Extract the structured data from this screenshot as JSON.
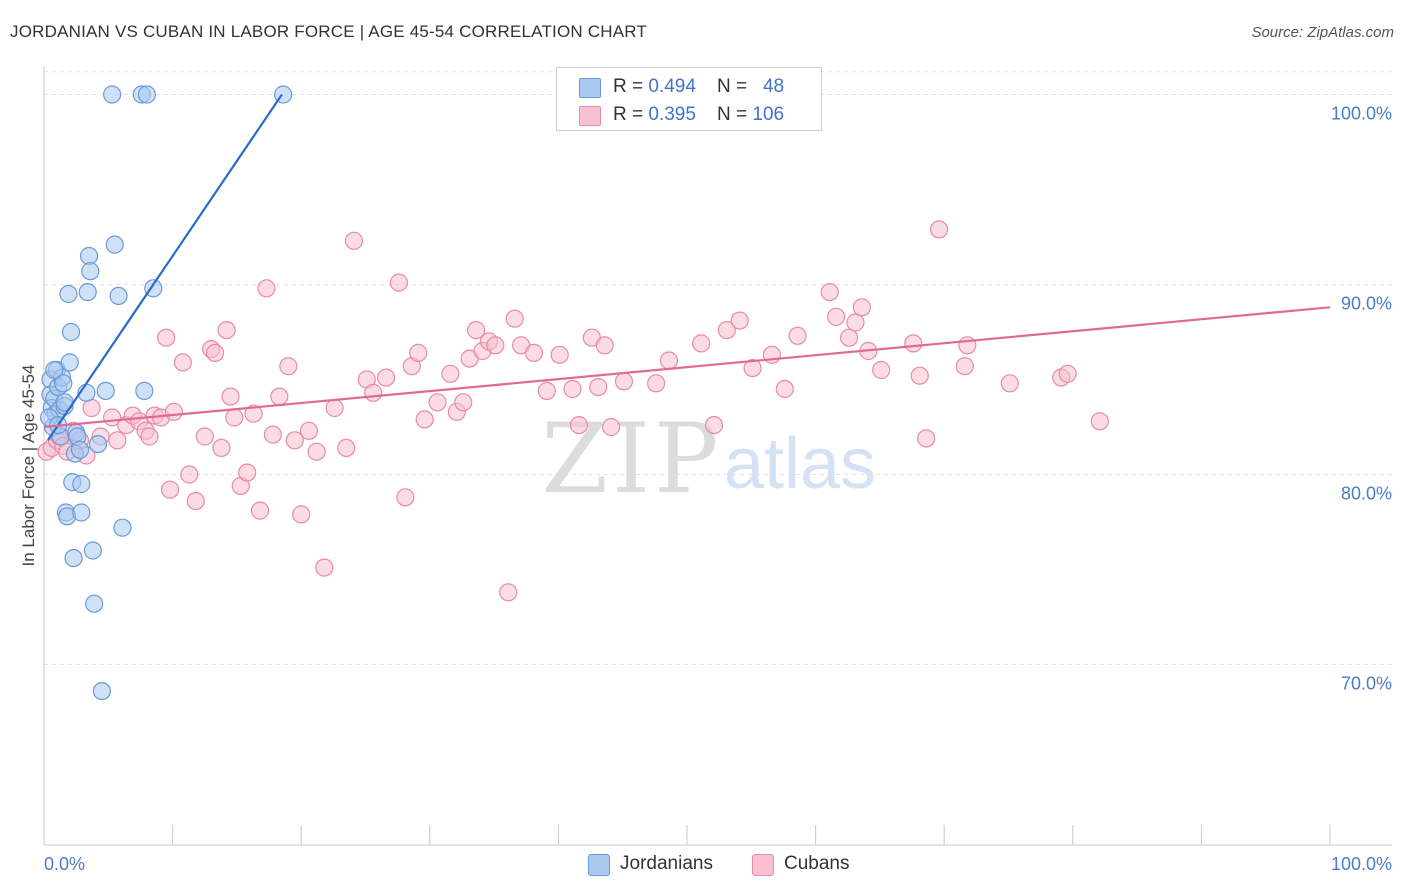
{
  "header": {
    "title": "JORDANIAN VS CUBAN IN LABOR FORCE | AGE 45-54 CORRELATION CHART",
    "source": "Source: ZipAtlas.com"
  },
  "watermark": {
    "zip": "ZIP",
    "atlas": "atlas"
  },
  "stats_legend": [
    {
      "r_label": "R = ",
      "r_value": "0.494",
      "n_label": "N = ",
      "n_value": "48",
      "color": "#a8c8f0",
      "border": "#6a9ad8"
    },
    {
      "r_label": "R = ",
      "r_value": "0.395",
      "n_label": "N = ",
      "n_value": "106",
      "color": "#f8c0d0",
      "border": "#e88aa8"
    }
  ],
  "chart_data": {
    "type": "scatter",
    "title": "JORDANIAN VS CUBAN IN LABOR FORCE | AGE 45-54 CORRELATION CHART",
    "xlabel": "",
    "ylabel": "In Labor Force | Age 45-54",
    "xlim": [
      0,
      100
    ],
    "ylim": [
      60.5,
      101.5
    ],
    "x_tick_labels": [
      {
        "value": 0,
        "label": "0.0%"
      },
      {
        "value": 100,
        "label": "100.0%"
      }
    ],
    "y_tick_labels": [
      {
        "value": 70,
        "label": "70.0%"
      },
      {
        "value": 80,
        "label": "80.0%"
      },
      {
        "value": 90,
        "label": "90.0%"
      },
      {
        "value": 100,
        "label": "100.0%"
      }
    ],
    "grid": true,
    "series": [
      {
        "name": "Jordanians",
        "color": "#a8c8f0",
        "stroke": "#6a9ad8",
        "trend_color": "#2a6cc8",
        "trend": {
          "x": [
            0.3,
            18.5
          ],
          "y": [
            81.8,
            100.0
          ]
        },
        "points": [
          [
            0.5,
            85.0
          ],
          [
            0.5,
            84.2
          ],
          [
            0.6,
            83.5
          ],
          [
            0.7,
            82.5
          ],
          [
            0.8,
            84.0
          ],
          [
            0.9,
            83.2
          ],
          [
            1.0,
            85.5
          ],
          [
            1.1,
            84.6
          ],
          [
            1.2,
            83.4
          ],
          [
            1.3,
            82.0
          ],
          [
            1.4,
            85.1
          ],
          [
            1.5,
            84.8
          ],
          [
            1.6,
            83.6
          ],
          [
            1.7,
            78.0
          ],
          [
            1.8,
            77.8
          ],
          [
            1.9,
            89.5
          ],
          [
            2.0,
            85.9
          ],
          [
            2.1,
            87.5
          ],
          [
            2.2,
            79.6
          ],
          [
            2.3,
            75.6
          ],
          [
            2.4,
            81.1
          ],
          [
            2.5,
            82.2
          ],
          [
            2.6,
            82.0
          ],
          [
            2.8,
            81.3
          ],
          [
            2.9,
            78.0
          ],
          [
            2.9,
            79.5
          ],
          [
            3.3,
            84.3
          ],
          [
            3.4,
            89.6
          ],
          [
            3.5,
            91.5
          ],
          [
            3.6,
            90.7
          ],
          [
            3.8,
            76.0
          ],
          [
            3.9,
            73.2
          ],
          [
            4.2,
            81.6
          ],
          [
            4.5,
            68.6
          ],
          [
            4.8,
            84.4
          ],
          [
            5.3,
            100.0
          ],
          [
            5.5,
            92.1
          ],
          [
            5.8,
            89.4
          ],
          [
            6.1,
            77.2
          ],
          [
            7.6,
            100.0
          ],
          [
            7.8,
            84.4
          ],
          [
            8.0,
            100.0
          ],
          [
            8.5,
            89.8
          ],
          [
            18.6,
            100.0
          ],
          [
            0.4,
            83.0
          ],
          [
            1.1,
            82.6
          ],
          [
            1.6,
            83.8
          ],
          [
            0.8,
            85.5
          ]
        ]
      },
      {
        "name": "Cubans",
        "color": "#f8c0d0",
        "stroke": "#e88aa8",
        "trend_color": "#e06a95",
        "trend": {
          "x": [
            0,
            100
          ],
          "y": [
            82.5,
            88.8
          ]
        },
        "points": [
          [
            0.2,
            81.2
          ],
          [
            0.6,
            81.4
          ],
          [
            1.0,
            81.8
          ],
          [
            1.2,
            82.0
          ],
          [
            1.5,
            81.5
          ],
          [
            1.8,
            81.2
          ],
          [
            2.3,
            82.3
          ],
          [
            2.8,
            81.8
          ],
          [
            3.3,
            81.0
          ],
          [
            3.7,
            83.5
          ],
          [
            4.4,
            82.0
          ],
          [
            5.3,
            83.0
          ],
          [
            5.7,
            81.8
          ],
          [
            6.4,
            82.6
          ],
          [
            6.9,
            83.1
          ],
          [
            7.4,
            82.8
          ],
          [
            7.9,
            82.3
          ],
          [
            8.2,
            82.0
          ],
          [
            8.6,
            83.1
          ],
          [
            9.1,
            83.0
          ],
          [
            9.5,
            87.2
          ],
          [
            9.8,
            79.2
          ],
          [
            10.1,
            83.3
          ],
          [
            10.8,
            85.9
          ],
          [
            11.3,
            80.0
          ],
          [
            11.8,
            78.6
          ],
          [
            12.5,
            82.0
          ],
          [
            13.0,
            86.6
          ],
          [
            13.3,
            86.4
          ],
          [
            13.8,
            81.4
          ],
          [
            14.2,
            87.6
          ],
          [
            14.5,
            84.1
          ],
          [
            14.8,
            83.0
          ],
          [
            15.3,
            79.4
          ],
          [
            15.8,
            80.1
          ],
          [
            16.3,
            83.2
          ],
          [
            16.8,
            78.1
          ],
          [
            17.3,
            89.8
          ],
          [
            17.8,
            82.1
          ],
          [
            18.3,
            84.1
          ],
          [
            19.0,
            85.7
          ],
          [
            19.5,
            81.8
          ],
          [
            20.0,
            77.9
          ],
          [
            20.6,
            82.3
          ],
          [
            21.2,
            81.2
          ],
          [
            21.8,
            75.1
          ],
          [
            22.6,
            83.5
          ],
          [
            23.5,
            81.4
          ],
          [
            24.1,
            92.3
          ],
          [
            25.1,
            85.0
          ],
          [
            25.6,
            84.3
          ],
          [
            26.6,
            85.1
          ],
          [
            27.6,
            90.1
          ],
          [
            28.1,
            78.8
          ],
          [
            28.6,
            85.7
          ],
          [
            29.1,
            86.4
          ],
          [
            29.6,
            82.9
          ],
          [
            30.6,
            83.8
          ],
          [
            31.6,
            85.3
          ],
          [
            32.1,
            83.3
          ],
          [
            32.6,
            83.8
          ],
          [
            33.1,
            86.1
          ],
          [
            33.6,
            87.6
          ],
          [
            34.1,
            86.5
          ],
          [
            34.6,
            87.0
          ],
          [
            35.1,
            86.8
          ],
          [
            36.1,
            73.8
          ],
          [
            36.6,
            88.2
          ],
          [
            37.1,
            86.8
          ],
          [
            38.1,
            86.4
          ],
          [
            39.1,
            84.4
          ],
          [
            40.1,
            86.3
          ],
          [
            41.1,
            84.5
          ],
          [
            41.6,
            82.6
          ],
          [
            42.6,
            87.2
          ],
          [
            43.1,
            84.6
          ],
          [
            43.6,
            86.8
          ],
          [
            44.1,
            82.5
          ],
          [
            45.1,
            84.9
          ],
          [
            47.6,
            84.8
          ],
          [
            48.6,
            86.0
          ],
          [
            51.1,
            86.9
          ],
          [
            52.1,
            82.6
          ],
          [
            53.1,
            87.6
          ],
          [
            54.1,
            88.1
          ],
          [
            55.1,
            85.6
          ],
          [
            56.6,
            86.3
          ],
          [
            57.6,
            84.5
          ],
          [
            58.6,
            87.3
          ],
          [
            61.1,
            89.6
          ],
          [
            61.6,
            88.3
          ],
          [
            62.6,
            87.2
          ],
          [
            63.1,
            88.0
          ],
          [
            63.6,
            88.8
          ],
          [
            64.1,
            86.5
          ],
          [
            65.1,
            85.5
          ],
          [
            67.6,
            86.9
          ],
          [
            68.1,
            85.2
          ],
          [
            68.6,
            81.9
          ],
          [
            69.6,
            92.9
          ],
          [
            71.6,
            85.7
          ],
          [
            71.8,
            86.8
          ],
          [
            75.1,
            84.8
          ],
          [
            79.1,
            85.1
          ],
          [
            79.6,
            85.3
          ],
          [
            82.1,
            82.8
          ]
        ]
      }
    ]
  },
  "bottom_legend": [
    {
      "label": "Jordanians",
      "color": "#a8c8f0",
      "border": "#6a9ad8"
    },
    {
      "label": "Cubans",
      "color": "#f8c0d0",
      "border": "#e88aa8"
    }
  ]
}
